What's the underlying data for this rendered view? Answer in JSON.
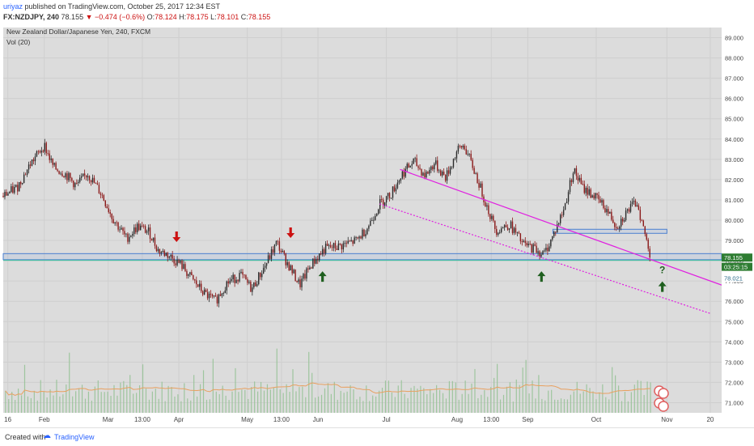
{
  "header": {
    "author": "uriyaz",
    "published": "published on TradingView.com, October 25, 2017 12:34 EST",
    "symbol": "FX:NZDJPY, 240",
    "last": "78.155",
    "change": "−0.474 (−0.6%)",
    "ohlc": {
      "o": "78.124",
      "h": "78.175",
      "l": "78.101",
      "c": "78.155"
    }
  },
  "pane": {
    "instrument": "New Zealand Dollar/Japanese Yen, 240, FXCM",
    "volume_label": "Vol (20)"
  },
  "footer": {
    "created_with": "Created with",
    "brand": "TradingView"
  },
  "colors": {
    "up": "#2a2a2a",
    "down": "#8b1a1a",
    "trend": "#e020e0",
    "zone": "#4a7fd0",
    "arrow_down": "#cc1111",
    "arrow_up": "#1f5f1f",
    "plot_bg": "#dcdcdc",
    "price_badge": "#2e7d32",
    "volume": "#8fbf8f",
    "volume_ma": "#e8a060"
  },
  "chart_data": {
    "type": "candlestick",
    "price_axis": {
      "min": 70.5,
      "max": 89.5,
      "ticks": [
        "89.000",
        "88.000",
        "87.000",
        "86.000",
        "85.000",
        "84.000",
        "83.000",
        "82.000",
        "81.000",
        "80.000",
        "79.000",
        "78.000",
        "77.000",
        "76.000",
        "75.000",
        "74.000",
        "73.000",
        "72.000",
        "71.000"
      ]
    },
    "time_axis": {
      "start": "2017-01-14",
      "end": "2017-11-25",
      "ticks": [
        {
          "label": "16",
          "date": "2017-01-16"
        },
        {
          "label": "Feb",
          "date": "2017-02-01"
        },
        {
          "label": "Mar",
          "date": "2017-03-01"
        },
        {
          "label": "13:00",
          "date": "2017-03-16"
        },
        {
          "label": "Apr",
          "date": "2017-04-01"
        },
        {
          "label": "May",
          "date": "2017-05-01"
        },
        {
          "label": "13:00",
          "date": "2017-05-16"
        },
        {
          "label": "Jun",
          "date": "2017-06-01"
        },
        {
          "label": "Jul",
          "date": "2017-07-01"
        },
        {
          "label": "Aug",
          "date": "2017-08-01"
        },
        {
          "label": "13:00",
          "date": "2017-08-16"
        },
        {
          "label": "Sep",
          "date": "2017-09-01"
        },
        {
          "label": "Oct",
          "date": "2017-10-01"
        },
        {
          "label": "Nov",
          "date": "2017-11-01"
        },
        {
          "label": "20",
          "date": "2017-11-20"
        }
      ]
    },
    "close_path": [
      [
        "2017-01-14",
        81.2
      ],
      [
        "2017-01-20",
        81.6
      ],
      [
        "2017-01-26",
        82.8
      ],
      [
        "2017-02-01",
        83.7
      ],
      [
        "2017-02-05",
        82.6
      ],
      [
        "2017-02-10",
        82.3
      ],
      [
        "2017-02-15",
        81.7
      ],
      [
        "2017-02-20",
        82.3
      ],
      [
        "2017-02-26",
        81.3
      ],
      [
        "2017-03-03",
        80.1
      ],
      [
        "2017-03-09",
        79.1
      ],
      [
        "2017-03-14",
        79.7
      ],
      [
        "2017-03-19",
        79.4
      ],
      [
        "2017-03-23",
        78.5
      ],
      [
        "2017-03-27",
        78.3
      ],
      [
        "2017-04-02",
        77.8
      ],
      [
        "2017-04-06",
        77.2
      ],
      [
        "2017-04-12",
        76.4
      ],
      [
        "2017-04-17",
        76.0
      ],
      [
        "2017-04-22",
        76.9
      ],
      [
        "2017-04-28",
        77.3
      ],
      [
        "2017-05-03",
        76.6
      ],
      [
        "2017-05-09",
        77.8
      ],
      [
        "2017-05-14",
        78.9
      ],
      [
        "2017-05-17",
        78.2
      ],
      [
        "2017-05-21",
        77.4
      ],
      [
        "2017-05-24",
        76.8
      ],
      [
        "2017-05-29",
        77.8
      ],
      [
        "2017-06-04",
        78.6
      ],
      [
        "2017-06-10",
        78.7
      ],
      [
        "2017-06-18",
        79.0
      ],
      [
        "2017-06-23",
        79.7
      ],
      [
        "2017-06-28",
        80.8
      ],
      [
        "2017-07-03",
        81.3
      ],
      [
        "2017-07-08",
        82.3
      ],
      [
        "2017-07-13",
        82.9
      ],
      [
        "2017-07-18",
        82.2
      ],
      [
        "2017-07-22",
        82.8
      ],
      [
        "2017-07-27",
        82.1
      ],
      [
        "2017-08-01",
        83.4
      ],
      [
        "2017-08-04",
        83.7
      ],
      [
        "2017-08-09",
        82.3
      ],
      [
        "2017-08-14",
        80.7
      ],
      [
        "2017-08-18",
        79.5
      ],
      [
        "2017-08-24",
        79.8
      ],
      [
        "2017-08-30",
        78.8
      ],
      [
        "2017-09-04",
        78.6
      ],
      [
        "2017-09-08",
        78.3
      ],
      [
        "2017-09-12",
        79.2
      ],
      [
        "2017-09-17",
        80.6
      ],
      [
        "2017-09-21",
        82.5
      ],
      [
        "2017-09-25",
        81.6
      ],
      [
        "2017-09-30",
        81.2
      ],
      [
        "2017-10-05",
        80.6
      ],
      [
        "2017-10-10",
        79.7
      ],
      [
        "2017-10-15",
        80.5
      ],
      [
        "2017-10-19",
        80.9
      ],
      [
        "2017-10-21",
        79.9
      ],
      [
        "2017-10-25",
        78.155
      ]
    ],
    "volume_axis_max": 20000,
    "horizontal_zones": [
      {
        "from": "2017-01-14",
        "to": "2017-11-25",
        "low": 78.05,
        "high": 78.35
      },
      {
        "from": "2017-09-12",
        "to": "2017-11-01",
        "low": 79.35,
        "high": 79.55
      }
    ],
    "horizontal_lines": [
      {
        "y": 78.02,
        "color": "#40c0a0"
      }
    ],
    "trend_lines": [
      {
        "from": [
          "2017-07-07",
          82.5
        ],
        "to": [
          "2017-11-25",
          76.8
        ],
        "style": "solid"
      },
      {
        "from": [
          "2017-06-28",
          80.8
        ],
        "to": [
          "2017-11-20",
          75.4
        ],
        "style": "dotted"
      }
    ],
    "markers": [
      {
        "date": "2017-03-31",
        "price": 79.2,
        "dir": "down"
      },
      {
        "date": "2017-05-20",
        "price": 79.4,
        "dir": "down"
      },
      {
        "date": "2017-06-03",
        "price": 77.2,
        "dir": "up"
      },
      {
        "date": "2017-09-07",
        "price": 77.2,
        "dir": "up"
      },
      {
        "date": "2017-10-30",
        "price": 76.7,
        "dir": "up"
      },
      {
        "date": "2017-10-30",
        "price": 77.55,
        "dir": "question",
        "text": "?"
      }
    ],
    "price_labels": [
      {
        "price": 78.155,
        "text": "78.155"
      },
      {
        "price": 77.7,
        "text": "03:25:15"
      },
      {
        "price": 77.15,
        "text": "78.021"
      }
    ]
  }
}
